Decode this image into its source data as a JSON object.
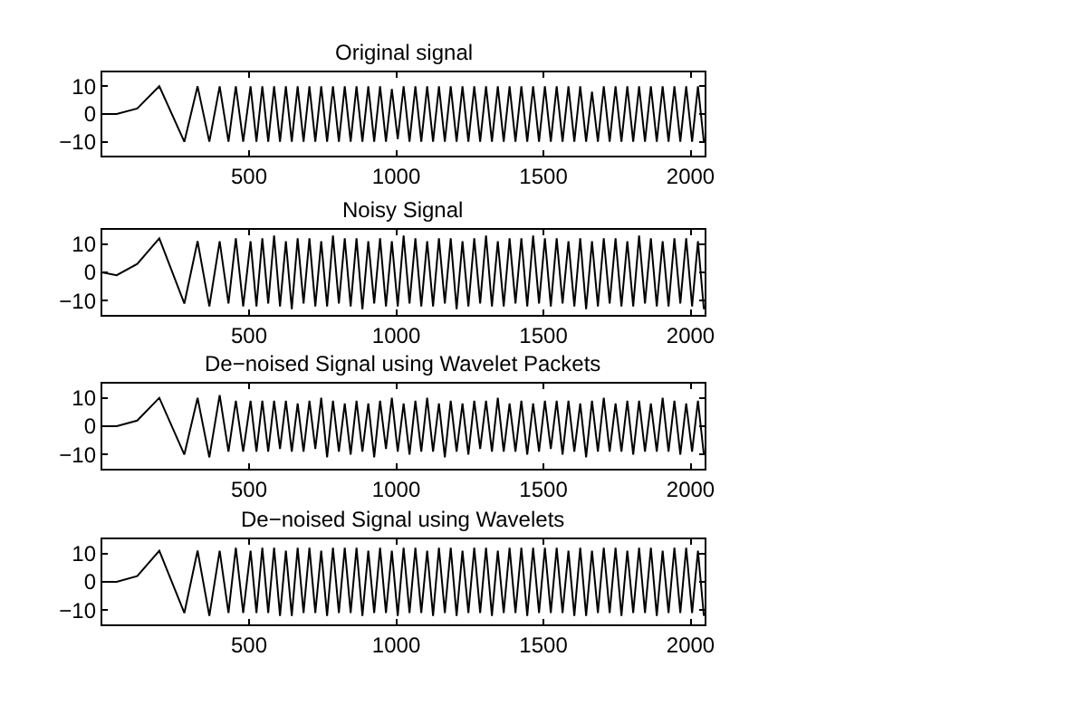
{
  "chart_data": [
    {
      "type": "line",
      "title": "Original signal",
      "xlim": [
        1,
        2048
      ],
      "ylim": [
        -15,
        15
      ],
      "xticks": [
        500,
        1000,
        1500,
        2000
      ],
      "yticks": [
        -10,
        0,
        10
      ],
      "marker": "none",
      "line_style": "solid",
      "x": [
        1,
        50,
        120,
        195,
        280,
        325,
        365,
        400,
        430,
        455,
        480,
        505,
        525,
        545,
        565,
        585,
        605,
        625,
        645,
        665,
        685,
        705,
        725,
        745,
        765,
        785,
        805,
        825,
        845,
        865,
        885,
        905,
        925,
        945,
        965,
        985,
        1005,
        1025,
        1045,
        1065,
        1085,
        1105,
        1125,
        1145,
        1165,
        1185,
        1205,
        1225,
        1245,
        1265,
        1285,
        1305,
        1325,
        1345,
        1365,
        1385,
        1405,
        1425,
        1445,
        1465,
        1485,
        1505,
        1525,
        1545,
        1565,
        1585,
        1605,
        1625,
        1645,
        1665,
        1685,
        1705,
        1725,
        1745,
        1765,
        1785,
        1805,
        1825,
        1845,
        1865,
        1885,
        1905,
        1925,
        1945,
        1965,
        1985,
        2005,
        2025,
        2045
      ],
      "series": [
        {
          "color": "#000000",
          "values": [
            0,
            0,
            2,
            10,
            -10,
            10,
            -10,
            10,
            -10,
            10,
            -10,
            10,
            -10,
            10,
            -10,
            10,
            -10,
            10,
            -10,
            10,
            -10,
            10,
            -10,
            10,
            -10,
            10,
            -10,
            10,
            -10,
            10,
            -10,
            10,
            -10,
            10,
            -10,
            9,
            -9,
            10,
            -10,
            10,
            -10,
            10,
            -10,
            10,
            -10,
            10,
            -10,
            10,
            -10,
            10,
            -10,
            10,
            -10,
            10,
            -10,
            10,
            -10,
            10,
            -10,
            10,
            -10,
            10,
            -10,
            10,
            -10,
            10,
            -10,
            10,
            -10,
            8,
            -10,
            10,
            -10,
            10,
            -10,
            10,
            -10,
            10,
            -10,
            10,
            -10,
            10,
            -10,
            10,
            -10,
            10,
            -10,
            10,
            -10
          ]
        }
      ]
    },
    {
      "type": "line",
      "title": "Noisy Signal",
      "xlim": [
        1,
        2048
      ],
      "ylim": [
        -15,
        15
      ],
      "xticks": [
        500,
        1000,
        1500,
        2000
      ],
      "yticks": [
        -10,
        0,
        10
      ],
      "marker": "none",
      "line_style": "solid",
      "x": [
        1,
        50,
        120,
        195,
        280,
        325,
        365,
        400,
        430,
        455,
        480,
        505,
        525,
        545,
        565,
        585,
        605,
        625,
        645,
        665,
        685,
        705,
        725,
        745,
        765,
        785,
        805,
        825,
        845,
        865,
        885,
        905,
        925,
        945,
        965,
        985,
        1005,
        1025,
        1045,
        1065,
        1085,
        1105,
        1125,
        1145,
        1165,
        1185,
        1205,
        1225,
        1245,
        1265,
        1285,
        1305,
        1325,
        1345,
        1365,
        1385,
        1405,
        1425,
        1445,
        1465,
        1485,
        1505,
        1525,
        1545,
        1565,
        1585,
        1605,
        1625,
        1645,
        1665,
        1685,
        1705,
        1725,
        1745,
        1765,
        1785,
        1805,
        1825,
        1845,
        1865,
        1885,
        1905,
        1925,
        1945,
        1965,
        1985,
        2005,
        2025,
        2045
      ],
      "series": [
        {
          "color": "#000000",
          "values": [
            0,
            -1,
            3,
            12,
            -11,
            11,
            -12,
            11,
            -11,
            12,
            -12,
            11,
            -12,
            12,
            -11,
            13,
            -12,
            11,
            -13,
            12,
            -11,
            12,
            -12,
            11,
            -12,
            13,
            -11,
            12,
            -12,
            12,
            -13,
            11,
            -11,
            12,
            -12,
            11,
            -12,
            13,
            -11,
            12,
            -12,
            11,
            -12,
            12,
            -11,
            12,
            -13,
            11,
            -12,
            12,
            -11,
            13,
            -12,
            11,
            -12,
            12,
            -11,
            12,
            -12,
            13,
            -11,
            12,
            -12,
            12,
            -11,
            11,
            -12,
            12,
            -13,
            11,
            -12,
            12,
            -11,
            12,
            -12,
            11,
            -12,
            13,
            -11,
            12,
            -12,
            11,
            -12,
            12,
            -11,
            12,
            -12,
            11,
            -13
          ]
        }
      ]
    },
    {
      "type": "line",
      "title": "De−noised Signal using Wavelet Packets",
      "xlim": [
        1,
        2048
      ],
      "ylim": [
        -15,
        15
      ],
      "xticks": [
        500,
        1000,
        1500,
        2000
      ],
      "yticks": [
        -10,
        0,
        10
      ],
      "marker": "none",
      "line_style": "solid",
      "x": [
        1,
        50,
        120,
        195,
        280,
        325,
        365,
        400,
        430,
        455,
        480,
        505,
        525,
        545,
        565,
        585,
        605,
        625,
        645,
        665,
        685,
        705,
        725,
        745,
        765,
        785,
        805,
        825,
        845,
        865,
        885,
        905,
        925,
        945,
        965,
        985,
        1005,
        1025,
        1045,
        1065,
        1085,
        1105,
        1125,
        1145,
        1165,
        1185,
        1205,
        1225,
        1245,
        1265,
        1285,
        1305,
        1325,
        1345,
        1365,
        1385,
        1405,
        1425,
        1445,
        1465,
        1485,
        1505,
        1525,
        1545,
        1565,
        1585,
        1605,
        1625,
        1645,
        1665,
        1685,
        1705,
        1725,
        1745,
        1765,
        1785,
        1805,
        1825,
        1845,
        1865,
        1885,
        1905,
        1925,
        1945,
        1965,
        1985,
        2005,
        2025,
        2045
      ],
      "series": [
        {
          "color": "#000000",
          "values": [
            0,
            0,
            2,
            10,
            -10,
            10,
            -11,
            11,
            -9,
            9,
            -9,
            9,
            -9,
            9,
            -9,
            9,
            -8,
            9,
            -9,
            8,
            -9,
            9,
            -8,
            10,
            -11,
            9,
            -9,
            8,
            -10,
            9,
            -9,
            8,
            -11,
            9,
            -8,
            10,
            -9,
            8,
            -10,
            9,
            -9,
            10,
            -9,
            8,
            -11,
            9,
            -9,
            8,
            -10,
            9,
            -8,
            9,
            -9,
            10,
            -9,
            8,
            -9,
            9,
            -10,
            8,
            -9,
            9,
            -8,
            9,
            -10,
            9,
            -9,
            8,
            -11,
            9,
            -9,
            10,
            -9,
            8,
            -9,
            9,
            -10,
            9,
            -9,
            8,
            -9,
            10,
            -9,
            9,
            -10,
            8,
            -9,
            9,
            -10
          ]
        }
      ]
    },
    {
      "type": "line",
      "title": "De−noised Signal using Wavelets",
      "xlim": [
        1,
        2048
      ],
      "ylim": [
        -15,
        15
      ],
      "xticks": [
        500,
        1000,
        1500,
        2000
      ],
      "yticks": [
        -10,
        0,
        10
      ],
      "marker": "none",
      "line_style": "solid",
      "x": [
        1,
        50,
        120,
        195,
        280,
        325,
        365,
        400,
        430,
        455,
        480,
        505,
        525,
        545,
        565,
        585,
        605,
        625,
        645,
        665,
        685,
        705,
        725,
        745,
        765,
        785,
        805,
        825,
        845,
        865,
        885,
        905,
        925,
        945,
        965,
        985,
        1005,
        1025,
        1045,
        1065,
        1085,
        1105,
        1125,
        1145,
        1165,
        1185,
        1205,
        1225,
        1245,
        1265,
        1285,
        1305,
        1325,
        1345,
        1365,
        1385,
        1405,
        1425,
        1445,
        1465,
        1485,
        1505,
        1525,
        1545,
        1565,
        1585,
        1605,
        1625,
        1645,
        1665,
        1685,
        1705,
        1725,
        1745,
        1765,
        1785,
        1805,
        1825,
        1845,
        1865,
        1885,
        1905,
        1925,
        1945,
        1965,
        1985,
        2005,
        2025,
        2045
      ],
      "series": [
        {
          "color": "#000000",
          "values": [
            0,
            0,
            2,
            11,
            -11,
            11,
            -12,
            11,
            -11,
            12,
            -11,
            11,
            -11,
            12,
            -11,
            12,
            -12,
            11,
            -12,
            12,
            -11,
            12,
            -11,
            11,
            -12,
            12,
            -11,
            12,
            -11,
            12,
            -12,
            11,
            -11,
            12,
            -11,
            11,
            -12,
            12,
            -11,
            12,
            -11,
            11,
            -12,
            12,
            -11,
            12,
            -12,
            11,
            -11,
            12,
            -11,
            12,
            -12,
            11,
            -11,
            12,
            -11,
            12,
            -12,
            12,
            -11,
            12,
            -11,
            12,
            -11,
            11,
            -12,
            12,
            -12,
            11,
            -11,
            12,
            -11,
            12,
            -12,
            11,
            -11,
            12,
            -11,
            12,
            -12,
            11,
            -11,
            12,
            -11,
            12,
            -11,
            11,
            -12
          ]
        }
      ]
    }
  ]
}
